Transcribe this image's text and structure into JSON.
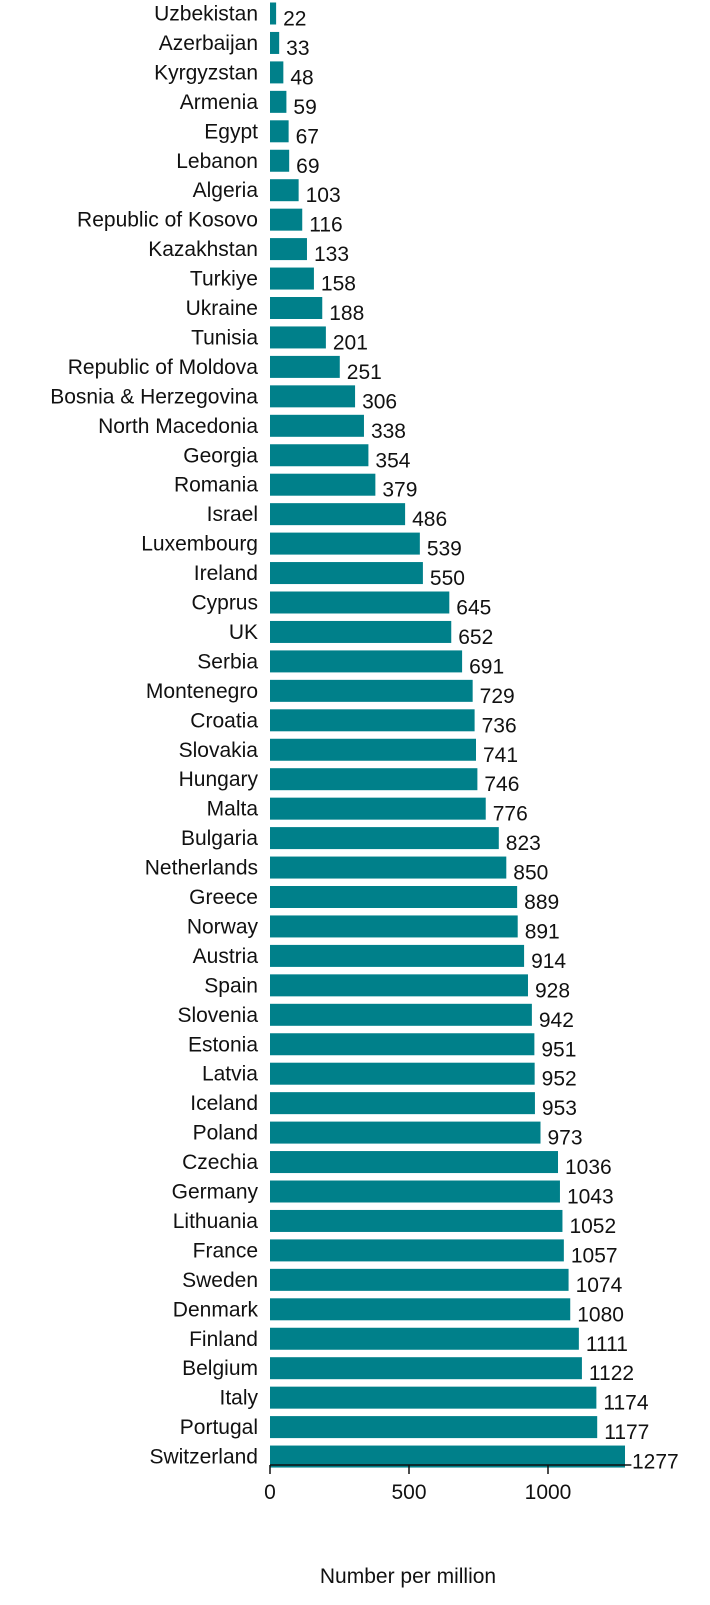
{
  "chart_data": {
    "type": "bar",
    "orientation": "horizontal",
    "xlabel": "Number per million",
    "ylabel": "",
    "xlim": [
      0,
      1300
    ],
    "xticks": [
      0,
      500,
      1000
    ],
    "grid": false,
    "bar_color": "#00808a",
    "categories": [
      "Uzbekistan",
      "Azerbaijan",
      "Kyrgyzstan",
      "Armenia",
      "Egypt",
      "Lebanon",
      "Algeria",
      "Republic of Kosovo",
      "Kazakhstan",
      "Turkiye",
      "Ukraine",
      "Tunisia",
      "Republic of Moldova",
      "Bosnia & Herzegovina",
      "North Macedonia",
      "Georgia",
      "Romania",
      "Israel",
      "Luxembourg",
      "Ireland",
      "Cyprus",
      "UK",
      "Serbia",
      "Montenegro",
      "Croatia",
      "Slovakia",
      "Hungary",
      "Malta",
      "Bulgaria",
      "Netherlands",
      "Greece",
      "Norway",
      "Austria",
      "Spain",
      "Slovenia",
      "Estonia",
      "Latvia",
      "Iceland",
      "Poland",
      "Czechia",
      "Germany",
      "Lithuania",
      "France",
      "Sweden",
      "Denmark",
      "Finland",
      "Belgium",
      "Italy",
      "Portugal",
      "Switzerland"
    ],
    "values": [
      22,
      33,
      48,
      59,
      67,
      69,
      103,
      116,
      133,
      158,
      188,
      201,
      251,
      306,
      338,
      354,
      379,
      486,
      539,
      550,
      645,
      652,
      691,
      729,
      736,
      741,
      746,
      776,
      823,
      850,
      889,
      891,
      914,
      928,
      942,
      951,
      952,
      953,
      973,
      1036,
      1043,
      1052,
      1057,
      1074,
      1080,
      1111,
      1122,
      1174,
      1177,
      1277
    ]
  }
}
